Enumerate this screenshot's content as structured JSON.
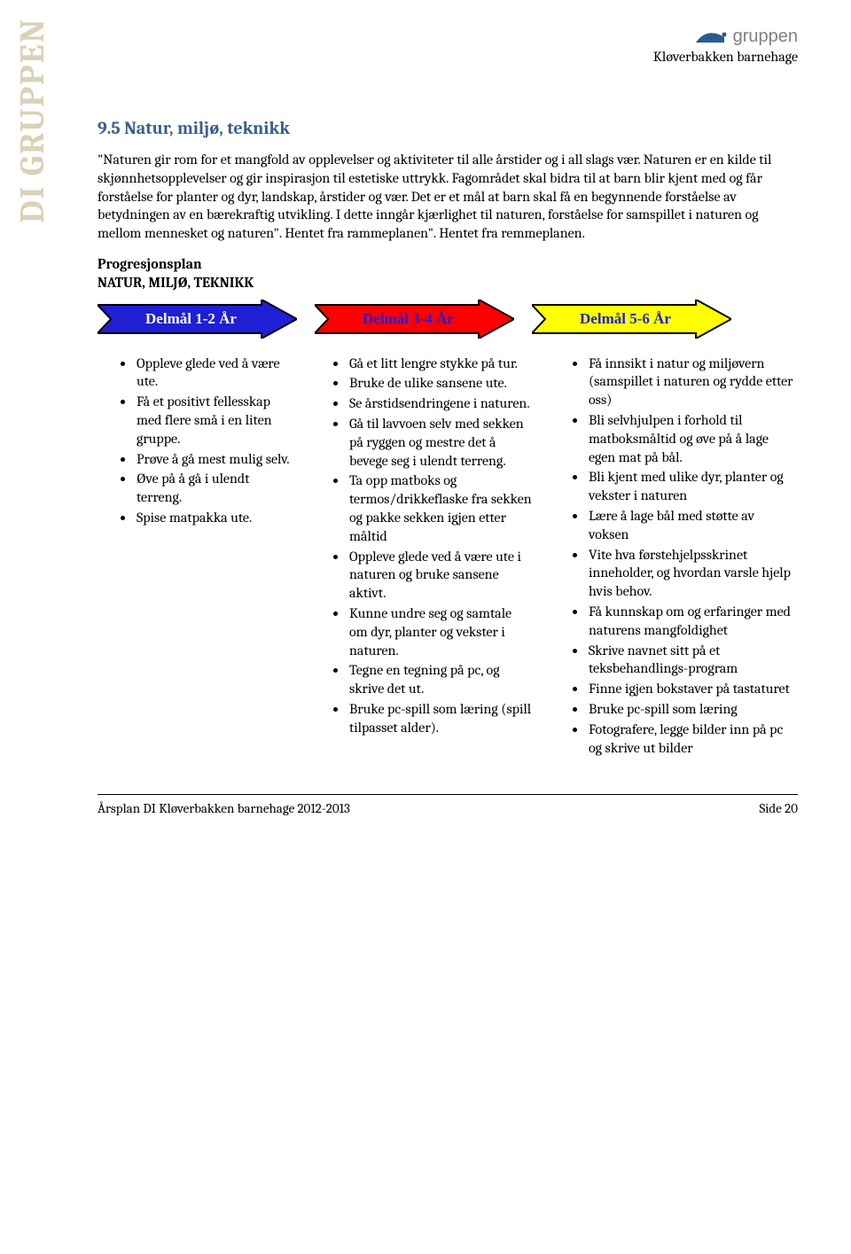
{
  "side_label": "DI GRUPPEN",
  "header": {
    "logo_text": "gruppen",
    "subtitle": "Kløverbakken barnehage",
    "logo_color": "#2a5b8f",
    "logo_text_color": "#808080"
  },
  "section": {
    "title": "9.5 Natur, miljø, teknikk",
    "title_color": "#365f91",
    "body": "\"Naturen gir rom for et mangfold av opplevelser og aktiviteter til alle årstider og i all slags vær. Naturen er en kilde til skjønnhetsopplevelser og gir inspirasjon til estetiske uttrykk. Fagområdet skal bidra til at barn blir kjent med og får forståelse for planter og dyr, landskap, årstider og vær. Det er et mål at barn skal få en begynnende forståelse av betydningen av en bærekraftig utvikling. I dette inngår kjærlighet til naturen, forståelse for samspillet i naturen og mellom mennesket og naturen\". Hentet fra rammeplanen\". Hentet fra remmeplanen.",
    "prog_line1": "Progresjonsplan",
    "prog_line2": "NATUR, MILJØ, TEKNIKK"
  },
  "arrows": [
    {
      "label": "Delmål 1-2 År",
      "fill": "#1f1fd6",
      "stroke": "#000000",
      "text_color": "#ffffff"
    },
    {
      "label": "Delmål 3-4 År",
      "fill": "#ff0000",
      "stroke": "#000000",
      "text_color": "#1f1fd6"
    },
    {
      "label": "Delmål 5-6 År",
      "fill": "#ffff00",
      "stroke": "#000000",
      "text_color": "#1f1fd6"
    }
  ],
  "columns": {
    "col1": [
      "Oppleve glede ved å være ute.",
      "Få et positivt fellesskap med flere små i en liten gruppe.",
      "Prøve å gå mest mulig selv.",
      "Øve på å gå i ulendt terreng.",
      "Spise matpakka ute."
    ],
    "col2": [
      "Gå et litt lengre stykke på tur.",
      "Bruke de ulike sansene ute.",
      "Se årstidsendringene i naturen.",
      "Gå til lavvoen selv med sekken på ryggen og mestre det å bevege seg i ulendt terreng.",
      "Ta opp matboks og termos/drikkeflaske fra sekken og pakke sekken igjen etter måltid",
      "Oppleve glede ved å være ute i naturen og bruke sansene aktivt.",
      "Kunne undre seg og samtale om dyr, planter og vekster i naturen.",
      "Tegne en tegning på pc, og skrive det ut.",
      "Bruke pc-spill som læring (spill tilpasset alder)."
    ],
    "col3": [
      "Få innsikt i natur og miljøvern (samspillet i naturen og rydde etter oss)",
      "Bli selvhjulpen i forhold til matboksmåltid og øve på å lage egen mat på bål.",
      "Bli kjent med ulike dyr, planter og vekster i naturen",
      "Lære å lage bål med støtte av voksen",
      "Vite hva førstehjelpsskrinet inneholder, og hvordan varsle hjelp hvis behov.",
      "Få kunnskap om og erfaringer med naturens mangfoldighet",
      "Skrive navnet sitt på et teksbehandlings-program",
      "Finne igjen bokstaver på tastaturet",
      "Bruke pc-spill som læring",
      "Fotografere, legge bilder inn på pc og skrive ut bilder"
    ]
  },
  "footer": {
    "left": "Årsplan DI Kløverbakken barnehage 2012-2013",
    "right": "Side 20"
  }
}
